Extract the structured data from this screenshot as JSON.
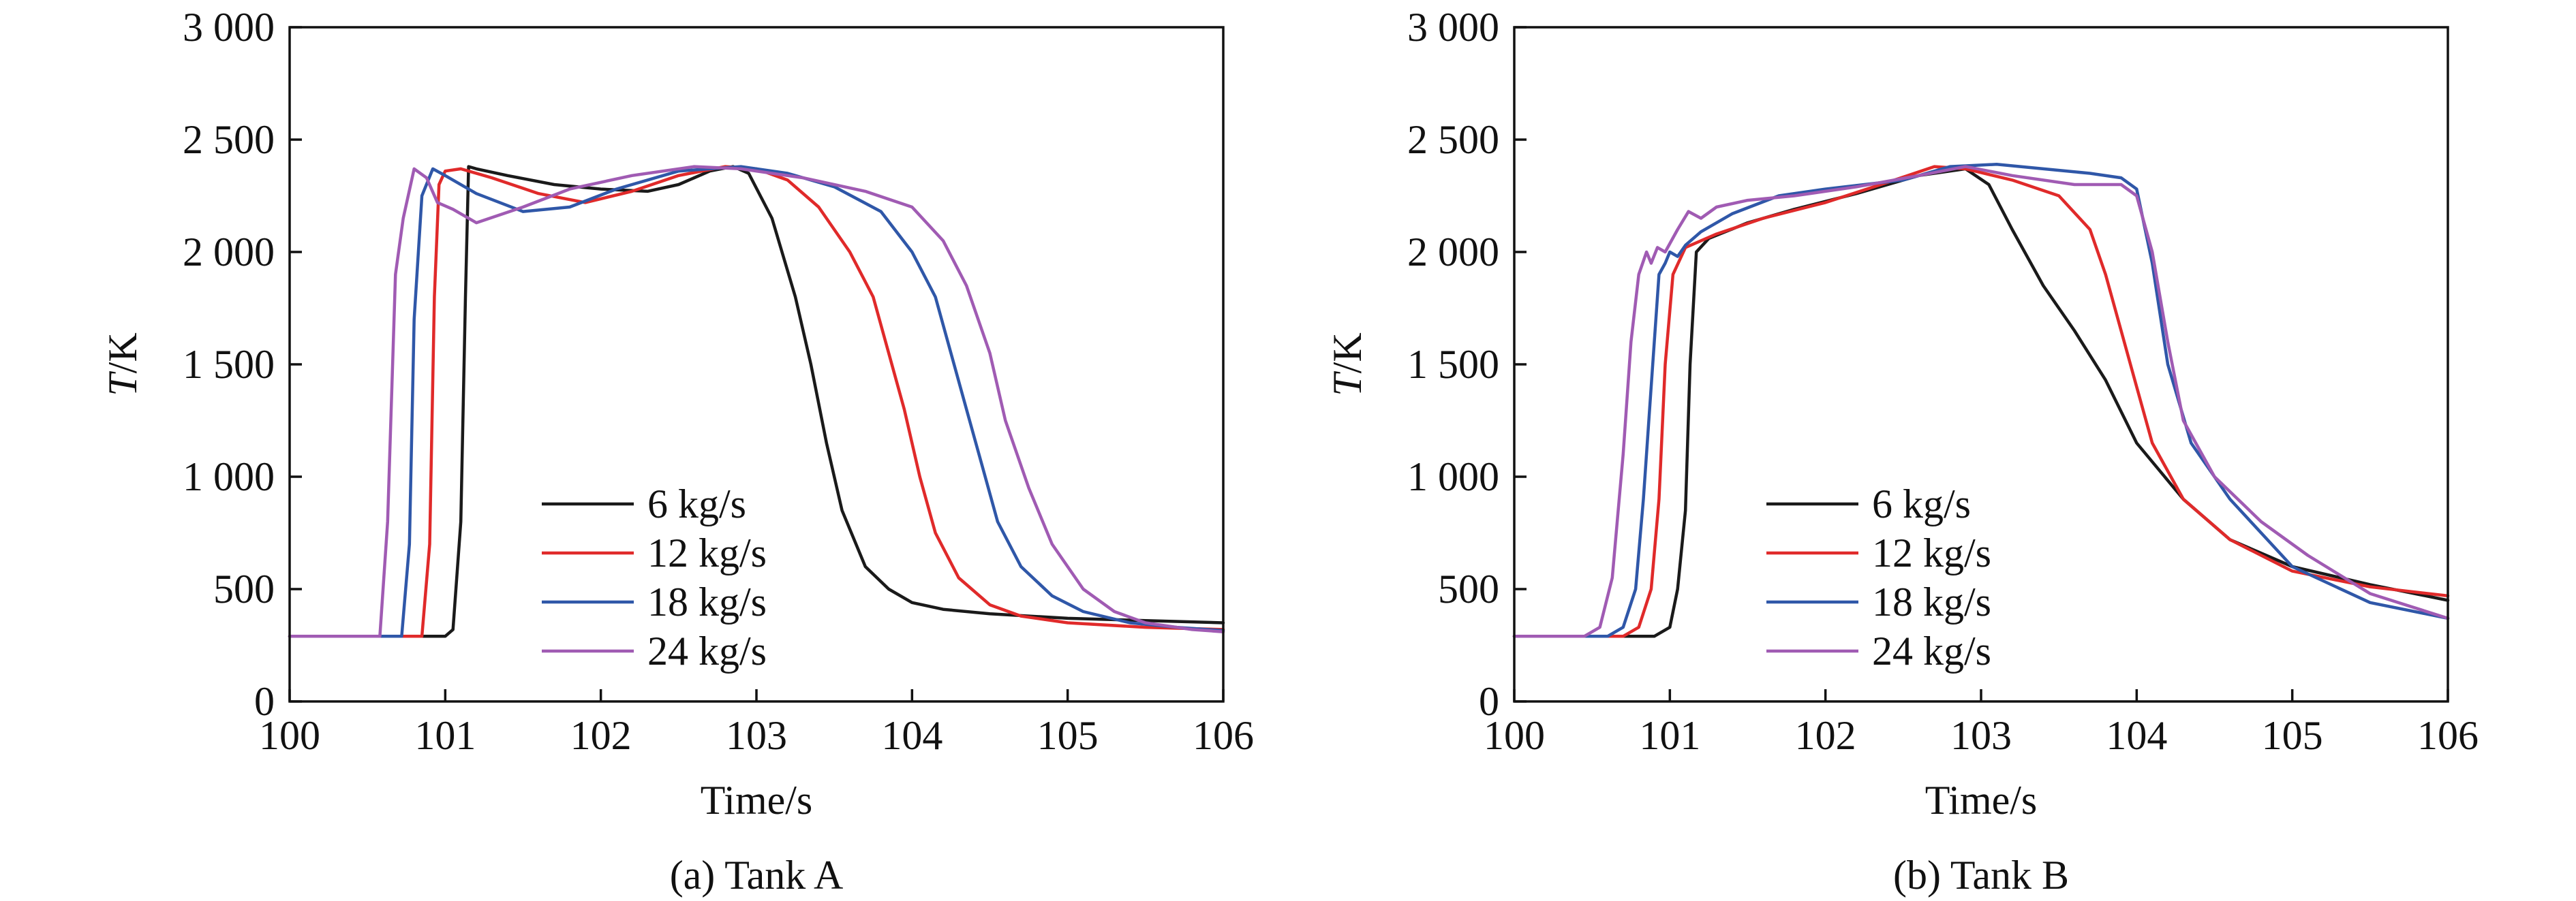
{
  "chart_data": [
    {
      "type": "line",
      "caption": "(a) Tank A",
      "xlabel": "Time/s",
      "ylabel_italic": "T",
      "ylabel_unit": "/K",
      "xlim": [
        100,
        106
      ],
      "ylim": [
        0,
        3000
      ],
      "xticks": [
        100,
        101,
        102,
        103,
        104,
        105,
        106
      ],
      "xtick_labels": [
        "100",
        "101",
        "102",
        "103",
        "104",
        "105",
        "106"
      ],
      "yticks": [
        0,
        500,
        1000,
        1500,
        2000,
        2500,
        3000
      ],
      "ytick_labels": [
        "0",
        "500",
        "1 000",
        "1 500",
        "2 000",
        "2 500",
        "3 000"
      ],
      "legend_position": "lower-left",
      "grid": false,
      "series": [
        {
          "name": "6 kg/s",
          "color": "#1a1a1a",
          "x": [
            100,
            101.0,
            101.05,
            101.1,
            101.13,
            101.15,
            101.2,
            101.4,
            101.7,
            102,
            102.3,
            102.5,
            102.7,
            102.85,
            102.95,
            103.1,
            103.25,
            103.35,
            103.45,
            103.55,
            103.7,
            103.85,
            104.0,
            104.2,
            104.5,
            105,
            105.5,
            106
          ],
          "y": [
            290,
            290,
            320,
            800,
            1800,
            2380,
            2370,
            2340,
            2300,
            2280,
            2270,
            2300,
            2360,
            2380,
            2350,
            2150,
            1800,
            1500,
            1150,
            850,
            600,
            500,
            440,
            410,
            390,
            370,
            360,
            350
          ]
        },
        {
          "name": "12 kg/s",
          "color": "#e02a2a",
          "x": [
            100,
            100.85,
            100.9,
            100.93,
            100.96,
            101.0,
            101.1,
            101.3,
            101.6,
            101.9,
            102.2,
            102.5,
            102.8,
            103.0,
            103.2,
            103.4,
            103.6,
            103.75,
            103.85,
            103.95,
            104.05,
            104.15,
            104.3,
            104.5,
            104.7,
            105,
            105.5,
            106
          ],
          "y": [
            290,
            290,
            700,
            1800,
            2300,
            2360,
            2370,
            2330,
            2260,
            2220,
            2270,
            2340,
            2380,
            2370,
            2320,
            2200,
            2000,
            1800,
            1550,
            1300,
            1000,
            750,
            550,
            430,
            380,
            350,
            330,
            320
          ]
        },
        {
          "name": "18 kg/s",
          "color": "#2f57a8",
          "x": [
            100,
            100.72,
            100.77,
            100.8,
            100.85,
            100.92,
            101.0,
            101.2,
            101.5,
            101.8,
            102.1,
            102.5,
            102.9,
            103.2,
            103.5,
            103.8,
            104.0,
            104.15,
            104.25,
            104.35,
            104.45,
            104.55,
            104.7,
            104.9,
            105.1,
            105.4,
            105.7,
            106
          ],
          "y": [
            290,
            290,
            700,
            1700,
            2250,
            2370,
            2340,
            2260,
            2180,
            2200,
            2280,
            2360,
            2380,
            2350,
            2290,
            2180,
            2000,
            1800,
            1550,
            1300,
            1050,
            800,
            600,
            470,
            400,
            350,
            330,
            315
          ]
        },
        {
          "name": "24 kg/s",
          "color": "#a05bb3",
          "x": [
            100,
            100.58,
            100.63,
            100.68,
            100.73,
            100.8,
            100.88,
            100.95,
            101.05,
            101.2,
            101.5,
            101.8,
            102.2,
            102.6,
            102.9,
            103.3,
            103.7,
            104.0,
            104.2,
            104.35,
            104.5,
            104.6,
            104.75,
            104.9,
            105.1,
            105.3,
            105.5,
            105.8,
            106
          ],
          "y": [
            290,
            290,
            800,
            1900,
            2150,
            2370,
            2330,
            2220,
            2190,
            2130,
            2200,
            2280,
            2340,
            2380,
            2370,
            2330,
            2270,
            2200,
            2050,
            1850,
            1550,
            1250,
            950,
            700,
            500,
            400,
            350,
            320,
            310
          ]
        }
      ]
    },
    {
      "type": "line",
      "caption": "(b) Tank B",
      "xlabel": "Time/s",
      "ylabel_italic": "T",
      "ylabel_unit": "/K",
      "xlim": [
        100,
        106
      ],
      "ylim": [
        0,
        3000
      ],
      "xticks": [
        100,
        101,
        102,
        103,
        104,
        105,
        106
      ],
      "xtick_labels": [
        "100",
        "101",
        "102",
        "103",
        "104",
        "105",
        "106"
      ],
      "yticks": [
        0,
        500,
        1000,
        1500,
        2000,
        2500,
        3000
      ],
      "ytick_labels": [
        "0",
        "500",
        "1 000",
        "1 500",
        "2 000",
        "2 500",
        "3 000"
      ],
      "legend_position": "lower-left",
      "grid": false,
      "series": [
        {
          "name": "6 kg/s",
          "color": "#1a1a1a",
          "x": [
            100,
            100.9,
            101.0,
            101.05,
            101.1,
            101.13,
            101.17,
            101.25,
            101.5,
            101.8,
            102.2,
            102.6,
            102.9,
            103.05,
            103.2,
            103.4,
            103.6,
            103.8,
            104.0,
            104.3,
            104.6,
            105,
            105.5,
            106
          ],
          "y": [
            290,
            290,
            330,
            500,
            850,
            1500,
            2000,
            2060,
            2130,
            2190,
            2260,
            2340,
            2370,
            2300,
            2100,
            1850,
            1650,
            1430,
            1150,
            900,
            720,
            600,
            520,
            450
          ]
        },
        {
          "name": "12 kg/s",
          "color": "#e02a2a",
          "x": [
            100,
            100.7,
            100.8,
            100.88,
            100.93,
            100.97,
            101.02,
            101.1,
            101.3,
            101.6,
            102.0,
            102.4,
            102.7,
            102.9,
            103.2,
            103.5,
            103.7,
            103.8,
            103.9,
            104.0,
            104.1,
            104.3,
            104.6,
            105,
            105.5,
            106
          ],
          "y": [
            290,
            290,
            330,
            500,
            900,
            1500,
            1900,
            2020,
            2080,
            2150,
            2220,
            2310,
            2380,
            2370,
            2320,
            2250,
            2100,
            1900,
            1650,
            1400,
            1150,
            900,
            720,
            580,
            510,
            470
          ]
        },
        {
          "name": "18 kg/s",
          "color": "#2f57a8",
          "x": [
            100,
            100.6,
            100.7,
            100.78,
            100.83,
            100.88,
            100.93,
            100.97,
            101.0,
            101.05,
            101.1,
            101.2,
            101.4,
            101.7,
            102.0,
            102.5,
            102.8,
            103.1,
            103.4,
            103.7,
            103.9,
            104.0,
            104.1,
            104.2,
            104.35,
            104.6,
            105,
            105.5,
            106
          ],
          "y": [
            290,
            290,
            330,
            500,
            900,
            1400,
            1900,
            1950,
            2000,
            1980,
            2030,
            2090,
            2170,
            2250,
            2280,
            2320,
            2380,
            2390,
            2370,
            2350,
            2330,
            2280,
            1950,
            1500,
            1150,
            900,
            600,
            440,
            370
          ]
        },
        {
          "name": "24 kg/s",
          "color": "#a05bb3",
          "x": [
            100,
            100.45,
            100.55,
            100.63,
            100.7,
            100.75,
            100.8,
            100.85,
            100.88,
            100.92,
            100.97,
            101.05,
            101.12,
            101.2,
            101.3,
            101.5,
            101.8,
            102.2,
            102.6,
            102.9,
            103.2,
            103.6,
            103.9,
            104.0,
            104.1,
            104.2,
            104.3,
            104.5,
            104.8,
            105.1,
            105.5,
            106
          ],
          "y": [
            290,
            290,
            330,
            550,
            1100,
            1600,
            1900,
            2000,
            1950,
            2020,
            2000,
            2100,
            2180,
            2150,
            2200,
            2230,
            2250,
            2290,
            2340,
            2380,
            2340,
            2300,
            2300,
            2250,
            2000,
            1600,
            1250,
            1000,
            800,
            650,
            480,
            370
          ]
        }
      ]
    }
  ]
}
